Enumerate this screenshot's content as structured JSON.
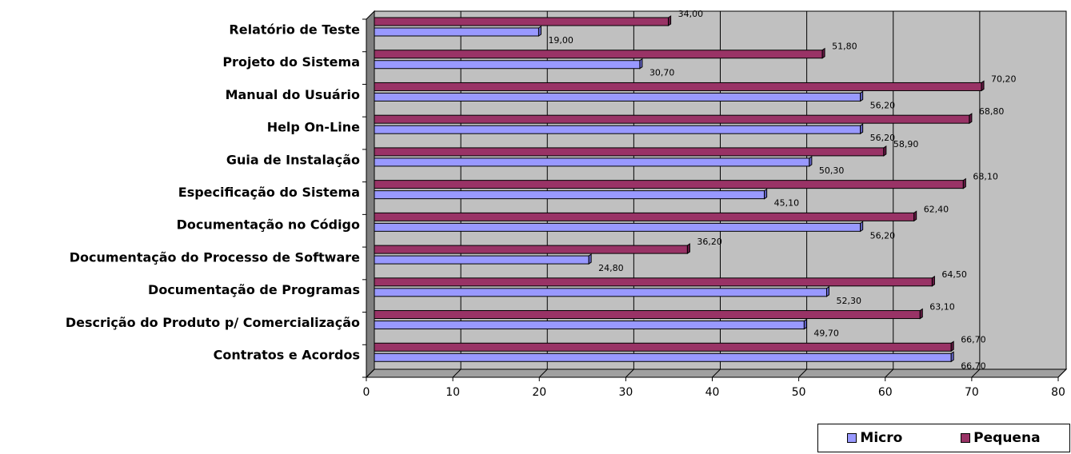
{
  "chart_data": {
    "type": "bar",
    "orientation": "horizontal",
    "categories": [
      "Contratos e Acordos",
      "Descrição do Produto p/ Comercialização",
      "Documentação de Programas",
      "Documentação do Processo de Software",
      "Documentação no Código",
      "Especificação do Sistema",
      "Guia de Instalação",
      "Help On-Line",
      "Manual do Usuário",
      "Projeto do Sistema",
      "Relatório de Teste"
    ],
    "series": [
      {
        "name": "Micro",
        "color": "#9999ff",
        "values": [
          66.7,
          49.7,
          52.3,
          24.8,
          56.2,
          45.1,
          50.3,
          56.2,
          56.2,
          30.7,
          19.0
        ],
        "labels": [
          "66,70",
          "49,70",
          "52,30",
          "24,80",
          "56,20",
          "45,10",
          "50,30",
          "56,20",
          "56,20",
          "30,70",
          "19,00"
        ]
      },
      {
        "name": "Pequena",
        "color": "#993366",
        "values": [
          66.7,
          63.1,
          64.5,
          36.2,
          62.4,
          68.1,
          58.9,
          68.8,
          70.2,
          51.8,
          34.0
        ],
        "labels": [
          "66,70",
          "63,10",
          "64,50",
          "36,20",
          "62,40",
          "68,10",
          "58,90",
          "68,80",
          "70,20",
          "51,80",
          "34,00"
        ]
      }
    ],
    "xlim": [
      0,
      80
    ],
    "xticks": [
      "0",
      "10",
      "20",
      "30",
      "40",
      "50",
      "60",
      "70",
      "80"
    ],
    "grid": true,
    "legend_position": "bottom-right",
    "plot_background": "#c0c0c0"
  }
}
